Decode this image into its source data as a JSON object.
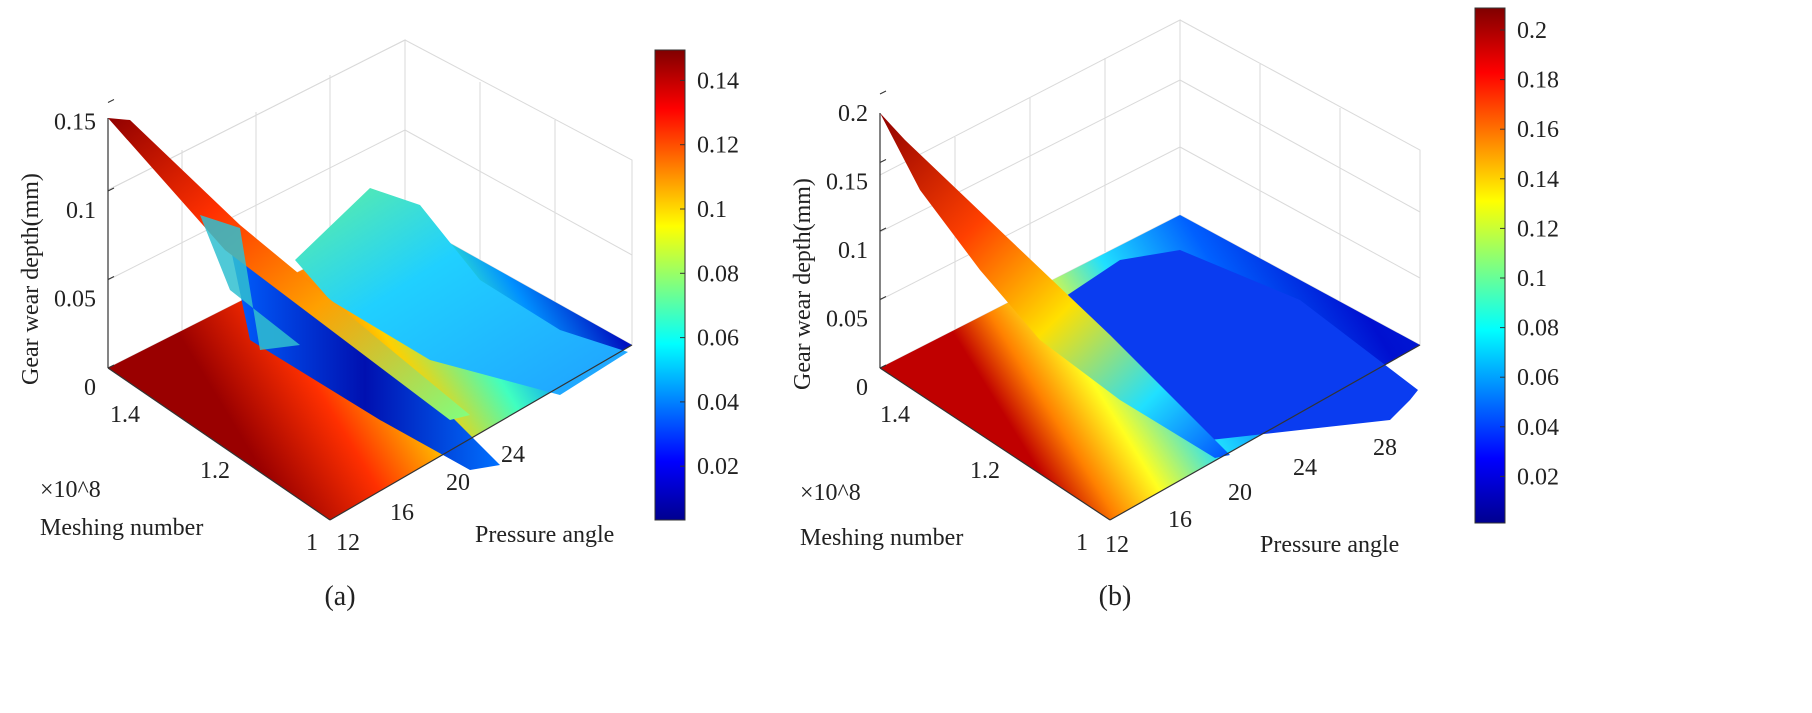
{
  "chart_data": [
    {
      "type": "surface",
      "panel_label": "(a)",
      "xlabel": "Meshing number",
      "x_multiplier": "×10^8",
      "x_ticks": [
        "1",
        "1.2",
        "1.4"
      ],
      "ylabel": "Pressure angle",
      "y_ticks": [
        "12",
        "16",
        "20",
        "24"
      ],
      "zlabel": "Gear wear depth(mm)",
      "z_ticks": [
        "0",
        "0.05",
        "0.1",
        "0.15"
      ],
      "zlim": [
        0,
        0.158
      ],
      "colorbar": {
        "colormap": "jet",
        "range": [
          0,
          0.158
        ],
        "ticks": [
          "0.02",
          "0.04",
          "0.06",
          "0.08",
          "0.1",
          "0.12",
          "0.14"
        ]
      },
      "peak": {
        "meshing_number": 150000000.0,
        "pressure_angle": 12,
        "wear_depth": 0.155
      },
      "contour_floor": true,
      "grid": true
    },
    {
      "type": "surface",
      "panel_label": "(b)",
      "xlabel": "Meshing number",
      "x_multiplier": "×10^8",
      "x_ticks": [
        "1",
        "1.2",
        "1.4"
      ],
      "ylabel": "Pressure angle",
      "y_ticks": [
        "12",
        "16",
        "20",
        "24",
        "28"
      ],
      "zlabel": "Gear wear depth(mm)",
      "z_ticks": [
        "0",
        "0.05",
        "0.1",
        "0.15",
        "0.2"
      ],
      "zlim": [
        0,
        0.21
      ],
      "colorbar": {
        "colormap": "jet",
        "range": [
          0,
          0.21
        ],
        "ticks": [
          "0.02",
          "0.04",
          "0.06",
          "0.08",
          "0.1",
          "0.12",
          "0.14",
          "0.16",
          "0.18",
          "0.2"
        ]
      },
      "peak": {
        "meshing_number": 150000000.0,
        "pressure_angle": 12,
        "wear_depth": 0.205
      },
      "contour_floor": true,
      "grid": true
    }
  ]
}
